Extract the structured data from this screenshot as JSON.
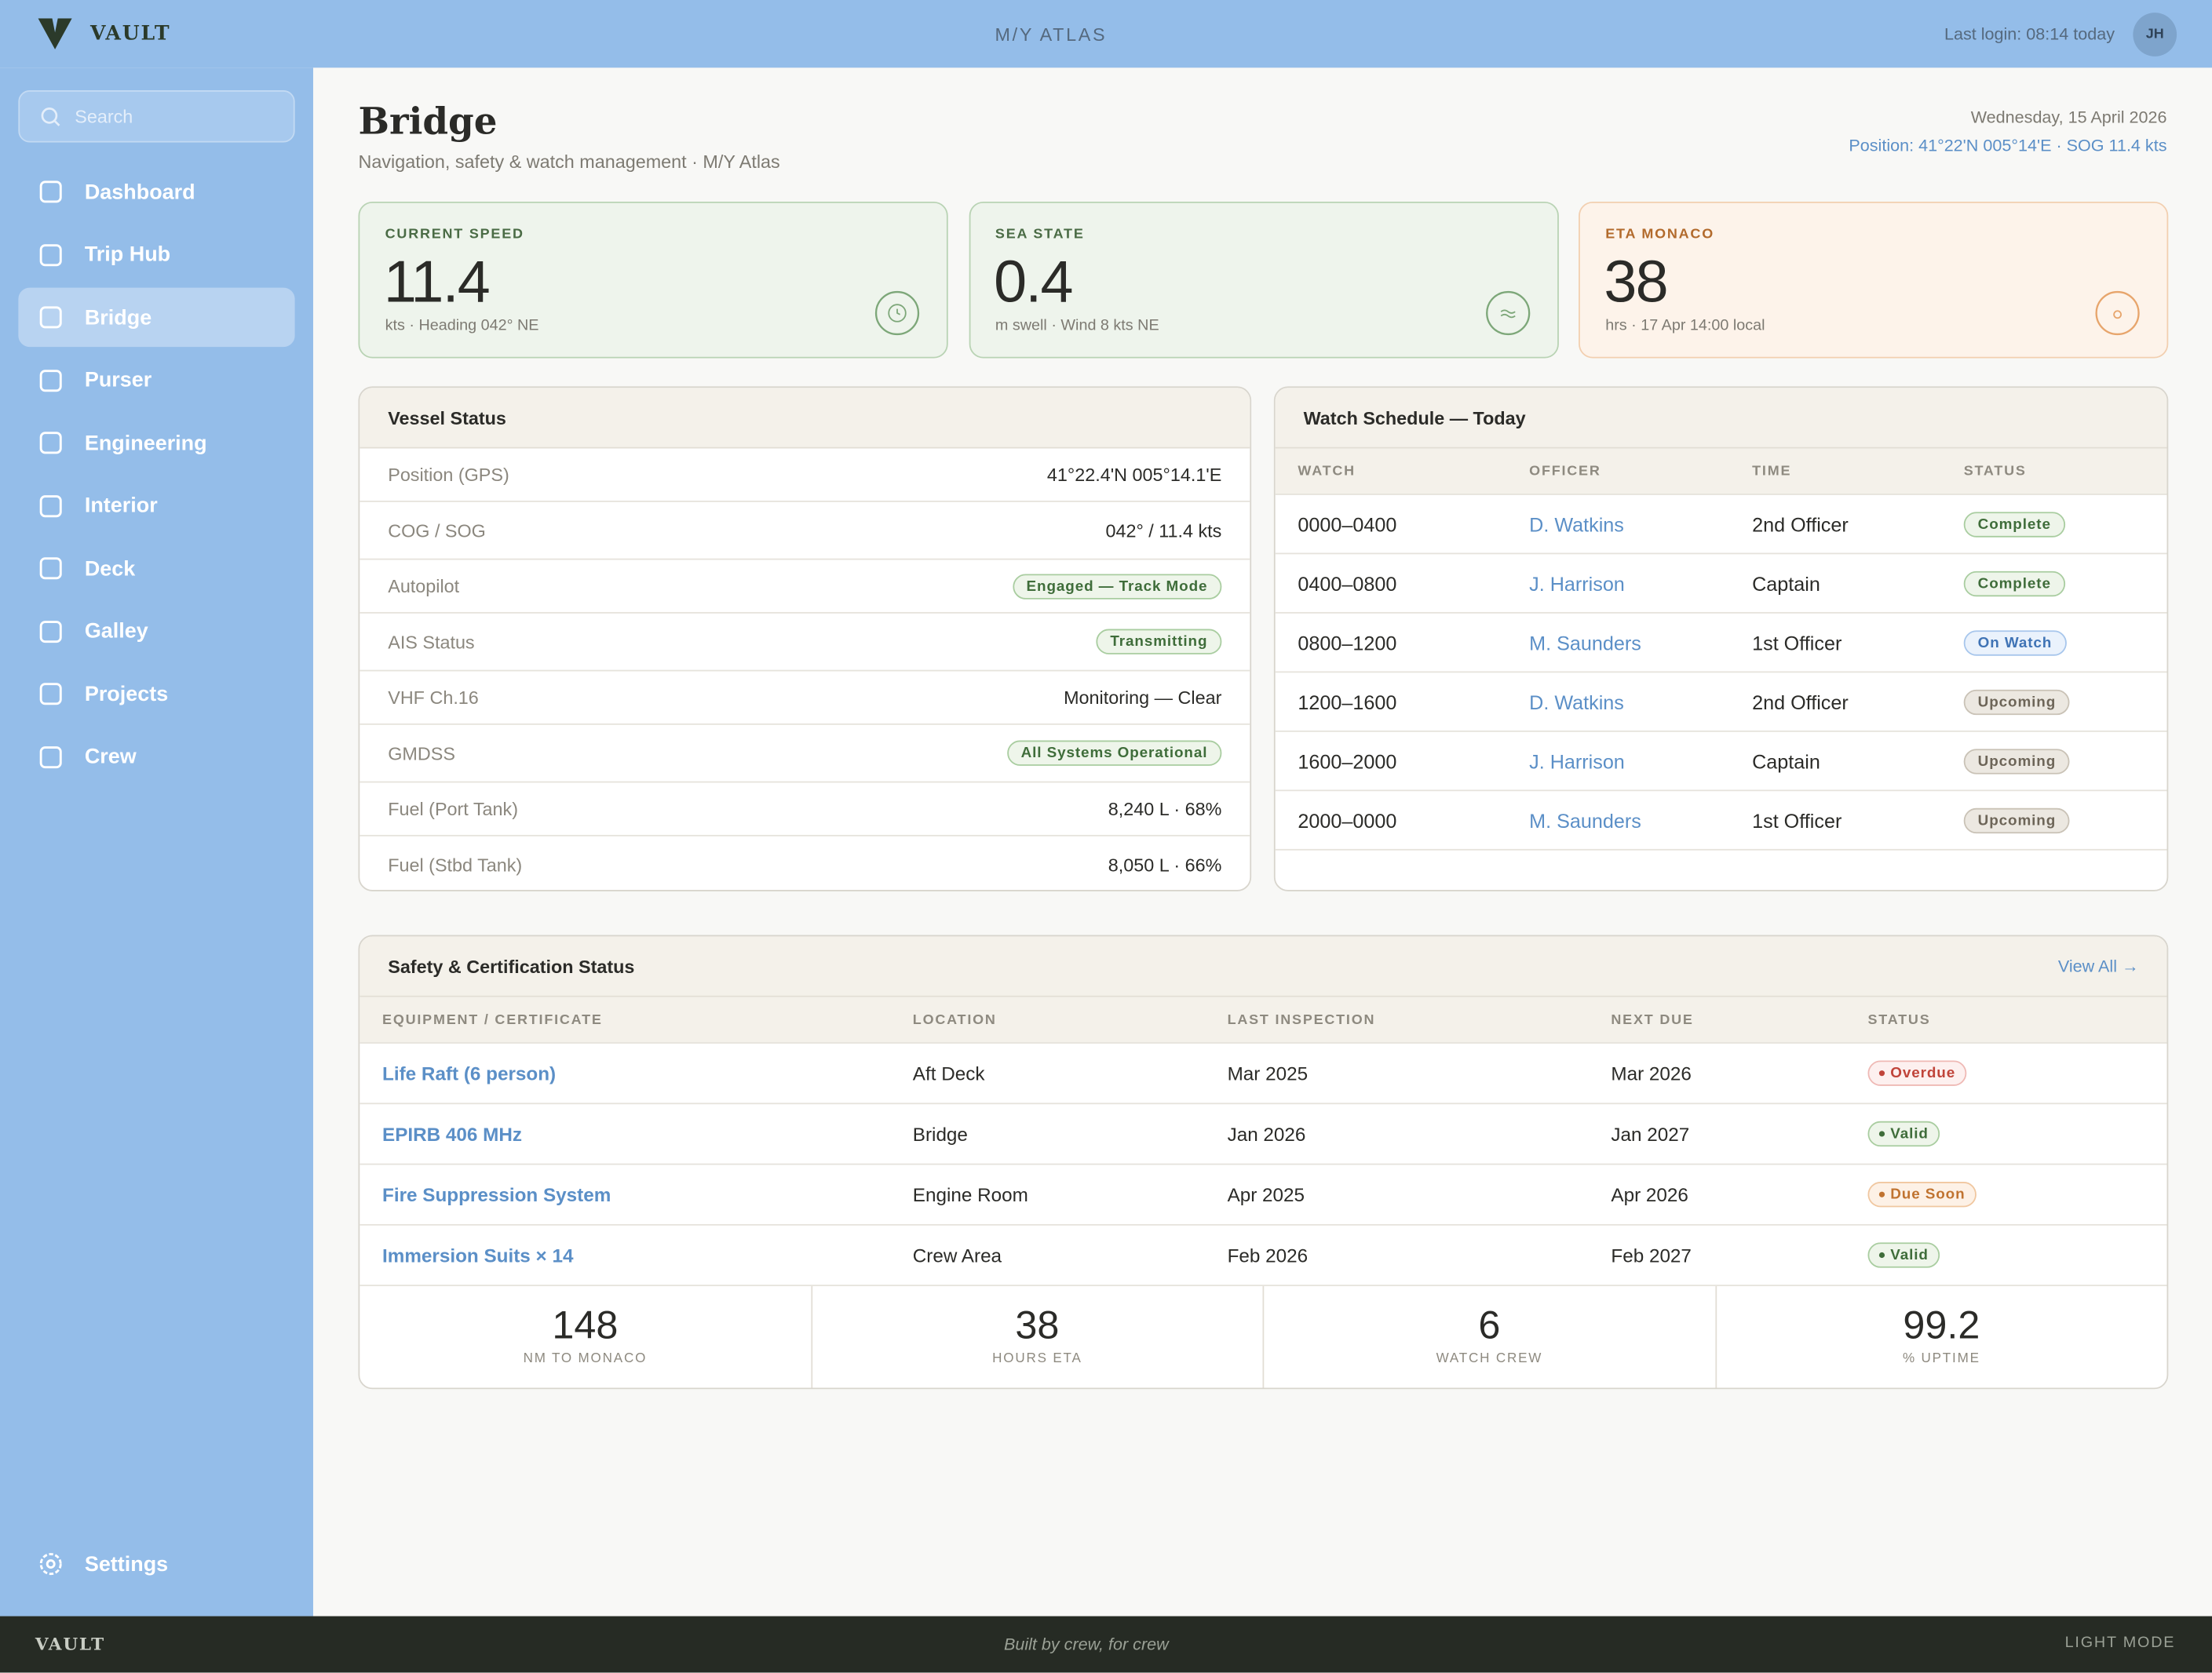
{
  "header": {
    "brand": "VAULT",
    "vessel": "M/Y ATLAS",
    "last_login": "Last login: 08:14 today",
    "avatar": "JH"
  },
  "sidebar": {
    "search": "Search",
    "nav": [
      {
        "label": "Dashboard"
      },
      {
        "label": "Trip Hub"
      },
      {
        "label": "Bridge",
        "active": true
      },
      {
        "label": "Purser"
      },
      {
        "label": "Engineering"
      },
      {
        "label": "Interior"
      },
      {
        "label": "Deck"
      },
      {
        "label": "Galley"
      },
      {
        "label": "Projects"
      },
      {
        "label": "Crew"
      }
    ],
    "settings": "Settings"
  },
  "page": {
    "title": "Bridge",
    "subtitle": "Navigation, safety & watch management · M/Y Atlas",
    "date": "Wednesday, 15 April 2026",
    "position": "Position: 41°22'N 005°14'E · SOG 11.4 kts"
  },
  "kpis": [
    {
      "label": "CURRENT SPEED",
      "value": 11.4,
      "sub": "kts · Heading 042° NE",
      "tone": "green"
    },
    {
      "label": "SEA STATE",
      "value": 0.4,
      "sub": "m swell · Wind 8 kts NE",
      "tone": "green"
    },
    {
      "label": "ETA MONACO",
      "value": 38,
      "sub": "hrs · 17 Apr 14:00 local",
      "tone": "orange"
    }
  ],
  "vessel_status": {
    "title": "Vessel Status",
    "rows": [
      {
        "label": "Position (GPS)",
        "value": "41°22.4'N 005°14.1'E"
      },
      {
        "label": "COG / SOG",
        "value": "042° / 11.4 kts"
      },
      {
        "label": "Autopilot",
        "value": "Engaged — Track Mode",
        "badge": "green"
      },
      {
        "label": "AIS Status",
        "value": "Transmitting",
        "badge": "green"
      },
      {
        "label": "VHF Ch.16",
        "value": "Monitoring — Clear"
      },
      {
        "label": "GMDSS",
        "value": "All Systems Operational",
        "badge": "green"
      },
      {
        "label": "Fuel (Port Tank)",
        "value": "8,240 L · 68%"
      },
      {
        "label": "Fuel (Stbd Tank)",
        "value": "8,050 L · 66%"
      }
    ]
  },
  "watch": {
    "title": "Watch Schedule — Today",
    "columns": [
      "WATCH",
      "OFFICER",
      "TIME",
      "STATUS"
    ],
    "rows": [
      {
        "watch": "0000–0400",
        "officer": "D. Watkins",
        "time": "2nd Officer",
        "status": "Complete",
        "tone": "green"
      },
      {
        "watch": "0400–0800",
        "officer": "J. Harrison",
        "time": "Captain",
        "status": "Complete",
        "tone": "green"
      },
      {
        "watch": "0800–1200",
        "officer": "M. Saunders",
        "time": "1st Officer",
        "status": "On Watch",
        "tone": "blue"
      },
      {
        "watch": "1200–1600",
        "officer": "D. Watkins",
        "time": "2nd Officer",
        "status": "Upcoming",
        "tone": "gray"
      },
      {
        "watch": "1600–2000",
        "officer": "J. Harrison",
        "time": "Captain",
        "status": "Upcoming",
        "tone": "gray"
      },
      {
        "watch": "2000–0000",
        "officer": "M. Saunders",
        "time": "1st Officer",
        "status": "Upcoming",
        "tone": "gray"
      }
    ]
  },
  "safety": {
    "title": "Safety & Certification Status",
    "action": "View All →",
    "columns": [
      "EQUIPMENT / CERTIFICATE",
      "LOCATION",
      "LAST INSPECTION",
      "NEXT DUE",
      "STATUS"
    ],
    "rows": [
      {
        "item": "Life Raft (6 person)",
        "location": "Aft Deck",
        "last": "Mar 2025",
        "next": "Mar 2026",
        "status": "Overdue",
        "tone": "red"
      },
      {
        "item": "EPIRB 406 MHz",
        "location": "Bridge",
        "last": "Jan 2026",
        "next": "Jan 2027",
        "status": "Valid",
        "tone": "green"
      },
      {
        "item": "Fire Suppression System",
        "location": "Engine Room",
        "last": "Apr 2025",
        "next": "Apr 2026",
        "status": "Due Soon",
        "tone": "orange"
      },
      {
        "item": "Immersion Suits × 14",
        "location": "Crew Area",
        "last": "Feb 2026",
        "next": "Feb 2027",
        "status": "Valid",
        "tone": "green"
      }
    ],
    "stats": [
      {
        "value": 148,
        "label": "NM TO MONACO"
      },
      {
        "value": 38,
        "label": "HOURS ETA"
      },
      {
        "value": 6,
        "label": "WATCH CREW"
      },
      {
        "value": 99.2,
        "label": "% UPTIME"
      }
    ]
  },
  "footer": {
    "brand": "VAULT",
    "tagline": "Built by crew, for crew",
    "mode": "LIGHT MODE"
  }
}
